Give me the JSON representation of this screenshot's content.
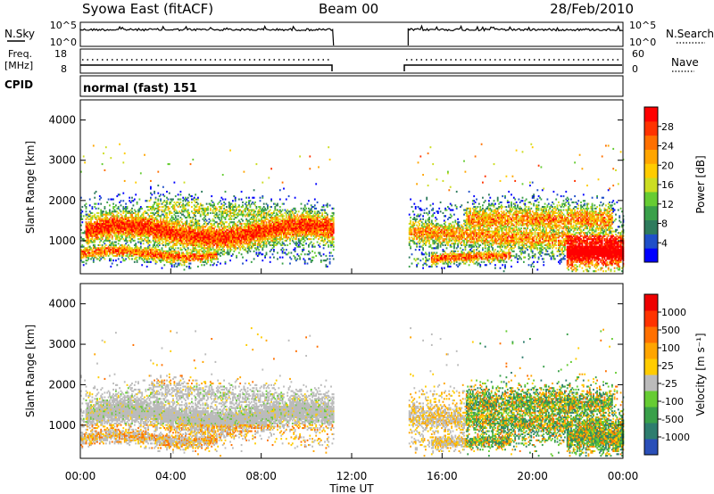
{
  "header": {
    "title": "Syowa East (fitACF)",
    "beam": "Beam 00",
    "date": "28/Feb/2010"
  },
  "noise_panel": {
    "left_label": "N.Sky",
    "right_label": "N.Search",
    "left_ticks": [
      "10^5",
      "10^0"
    ],
    "right_ticks": [
      "10^5",
      "10^0"
    ]
  },
  "freq_panel": {
    "left_label_top": "Freq.",
    "left_label_bottom": "[MHz]",
    "left_ticks": [
      "18",
      "8"
    ],
    "right_label": "Nave",
    "right_ticks": [
      "60",
      "0"
    ]
  },
  "cpid": {
    "label": "CPID",
    "value": "normal (fast) 151"
  },
  "chart_data": [
    {
      "type": "heatmap",
      "name": "power",
      "ylabel": "Slant Range [km]",
      "xlabel": "Time UT",
      "xlim_hours": [
        0,
        24
      ],
      "ylim": [
        180,
        4500
      ],
      "yticks": [
        "1000",
        "2000",
        "3000",
        "4000"
      ],
      "xticks": [
        "00:00",
        "04:00",
        "08:00",
        "12:00",
        "16:00",
        "20:00",
        "00:00"
      ],
      "data_gap_hours": [
        11.2,
        14.5
      ],
      "colorbar": {
        "label": "Power [dB]",
        "range": [
          0,
          32
        ],
        "ticks": [
          "4",
          "8",
          "12",
          "16",
          "20",
          "24",
          "28"
        ],
        "colors": [
          "#0000ff",
          "#1f4fc8",
          "#2e7b5d",
          "#3aa04a",
          "#66cc33",
          "#ccdd22",
          "#ffcc00",
          "#ffa500",
          "#ff7000",
          "#ff3300",
          "#ff0000"
        ]
      }
    },
    {
      "type": "heatmap",
      "name": "velocity",
      "ylabel": "Slant Range [km]",
      "xlabel": "Time UT",
      "xlim_hours": [
        0,
        24
      ],
      "ylim": [
        180,
        4500
      ],
      "yticks": [
        "1000",
        "2000",
        "3000",
        "4000"
      ],
      "xticks": [
        "00:00",
        "04:00",
        "08:00",
        "12:00",
        "16:00",
        "20:00",
        "00:00"
      ],
      "data_gap_hours": [
        11.2,
        14.5
      ],
      "colorbar": {
        "label": "Velocity [m s⁻¹]",
        "ticks": [
          "1000",
          "500",
          "100",
          "25",
          "-25",
          "-100",
          "-500",
          "-1000"
        ],
        "colors": [
          "#2a4fb8",
          "#2e7d6e",
          "#3aa04a",
          "#66cc33",
          "#bbbbbb",
          "#ffcc00",
          "#ffa500",
          "#ff7000",
          "#ff3300",
          "#ee0000"
        ]
      }
    }
  ],
  "xaxis": {
    "label": "Time UT",
    "ticks": [
      "00:00",
      "04:00",
      "08:00",
      "12:00",
      "16:00",
      "20:00",
      "00:00"
    ]
  }
}
